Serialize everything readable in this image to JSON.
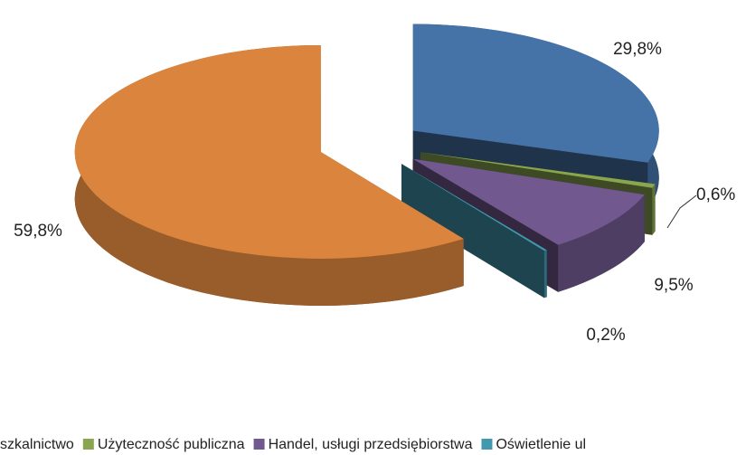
{
  "chart_data": {
    "type": "pie",
    "categories": [
      "szkalnictwo",
      "Użyteczność publiczna",
      "Handel, usługi przedsiębiorstwa",
      "Oświetlenie ul",
      null
    ],
    "values": [
      29.8,
      0.6,
      9.5,
      0.2,
      59.8
    ],
    "value_labels": [
      "29,8%",
      "0,6%",
      "9,5%",
      "0,2%",
      "59,8%"
    ],
    "colors": [
      "#4572a7",
      "#89a54e",
      "#71588f",
      "#4198af",
      "#db843d"
    ],
    "legend": "bottom"
  }
}
